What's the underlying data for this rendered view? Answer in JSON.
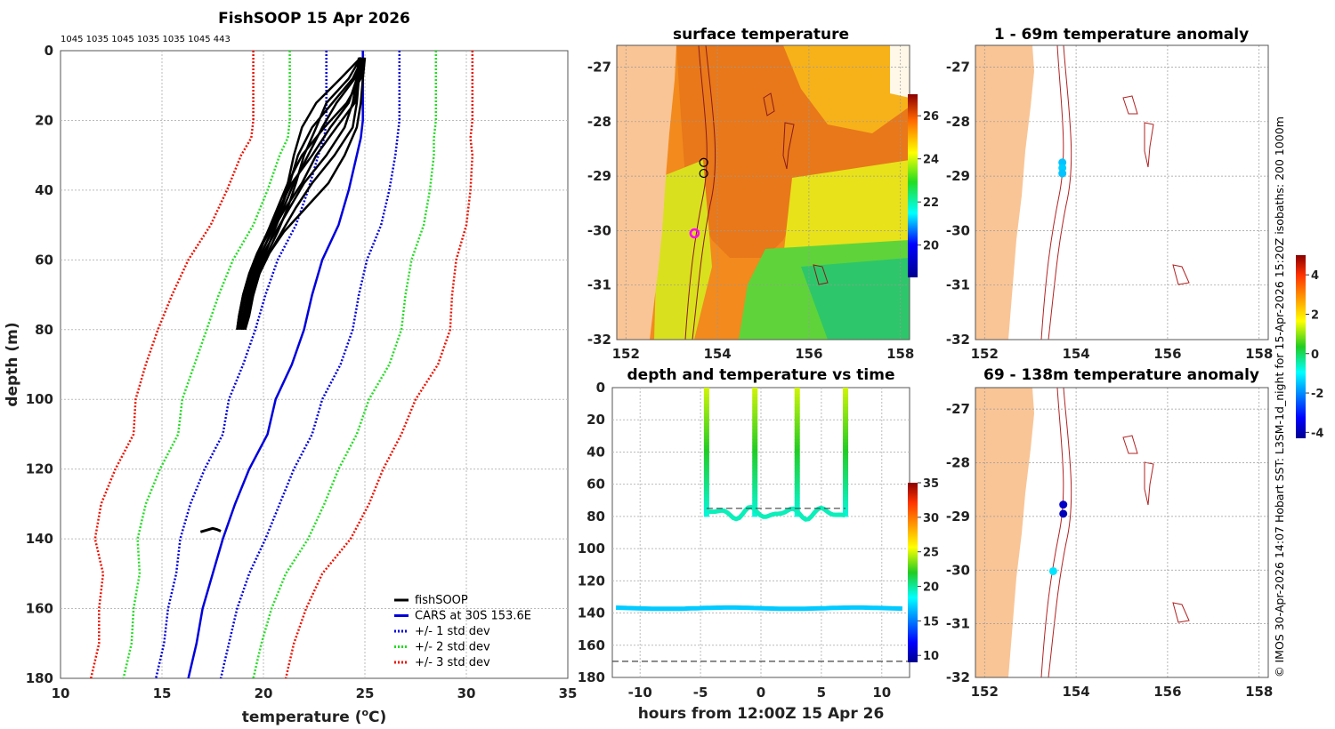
{
  "chart_data": [
    {
      "type": "line",
      "panel": "profile",
      "title": "FishSOOP 15 Apr 2026",
      "subtitle": "1045 1035 1045 1035 1035 1045 443",
      "xlabel": "temperature (",
      "xlabel_sup": "o",
      "xlabel_end": "C)",
      "ylabel": "depth (m)",
      "xlim": [
        10,
        35
      ],
      "ylim": [
        0,
        180
      ],
      "y_reversed": true,
      "xticks": [
        10,
        15,
        20,
        25,
        30,
        35
      ],
      "yticks": [
        0,
        20,
        40,
        60,
        80,
        100,
        120,
        140,
        160,
        180
      ],
      "grid": true,
      "legend": {
        "position": "bottom-right",
        "entries": [
          {
            "label": "fishSOOP",
            "color": "#000000",
            "style": "solid"
          },
          {
            "label": "CARS at 30S 153.6E",
            "color": "#0000dd",
            "style": "solid"
          },
          {
            "label": "+/- 1 std dev",
            "color": "#0000dd",
            "style": "dotted"
          },
          {
            "label": "+/- 2 std dev",
            "color": "#22dd22",
            "style": "dotted"
          },
          {
            "label": "+/- 3 std dev",
            "color": "#ee1100",
            "style": "dotted"
          }
        ]
      },
      "cars_depth": [
        0,
        20,
        25,
        30,
        40,
        50,
        60,
        70,
        80,
        90,
        100,
        110,
        120,
        130,
        140,
        150,
        160,
        170,
        180
      ],
      "cars_mean": [
        24.9,
        24.9,
        24.8,
        24.6,
        24.2,
        23.7,
        22.9,
        22.4,
        22.0,
        21.4,
        20.6,
        20.2,
        19.3,
        18.6,
        18.0,
        17.5,
        17.0,
        16.7,
        16.3
      ],
      "cars_std": [
        1.8,
        1.8,
        1.8,
        1.9,
        2.0,
        2.1,
        2.2,
        2.3,
        2.4,
        2.4,
        2.3,
        2.2,
        2.2,
        2.2,
        2.1,
        1.8,
        1.7,
        1.6,
        1.6
      ],
      "fish_profiles": [
        {
          "depth": [
            2,
            8,
            15,
            22,
            30,
            38,
            45,
            52,
            58,
            64,
            70,
            76,
            80
          ],
          "temp": [
            24.8,
            24.7,
            24.5,
            23.6,
            22.6,
            21.9,
            21.1,
            20.4,
            19.9,
            19.5,
            19.2,
            19.0,
            18.9
          ]
        },
        {
          "depth": [
            2,
            8,
            15,
            22,
            30,
            38,
            45,
            52,
            58,
            64,
            70,
            76,
            80
          ],
          "temp": [
            24.9,
            24.8,
            24.1,
            23.0,
            21.9,
            21.2,
            20.7,
            20.2,
            19.8,
            19.4,
            19.1,
            18.9,
            18.8
          ]
        },
        {
          "depth": [
            2,
            8,
            15,
            22,
            30,
            38,
            45,
            52,
            58,
            64,
            70,
            76,
            80
          ],
          "temp": [
            24.8,
            23.8,
            22.6,
            21.9,
            21.5,
            21.2,
            20.9,
            20.3,
            19.7,
            19.3,
            19.0,
            18.8,
            18.7
          ]
        },
        {
          "depth": [
            2,
            8,
            15,
            22,
            30,
            38,
            45,
            52,
            58,
            64,
            70,
            76,
            80
          ],
          "temp": [
            24.9,
            24.4,
            23.4,
            22.4,
            21.7,
            21.3,
            20.9,
            20.4,
            19.9,
            19.6,
            19.3,
            19.1,
            19.0
          ]
        },
        {
          "depth": [
            2,
            8,
            15,
            22,
            30,
            38,
            45,
            52,
            58,
            64,
            70,
            76,
            80
          ],
          "temp": [
            24.7,
            24.6,
            24.4,
            24.0,
            23.1,
            22.0,
            21.3,
            20.6,
            20.0,
            19.6,
            19.3,
            19.0,
            18.9
          ]
        },
        {
          "depth": [
            2,
            8,
            15,
            22,
            30,
            38,
            45,
            52,
            58,
            64,
            70,
            76,
            80
          ],
          "temp": [
            24.9,
            24.5,
            23.6,
            22.9,
            22.2,
            21.5,
            21.0,
            20.5,
            20.1,
            19.7,
            19.4,
            19.2,
            19.0
          ]
        },
        {
          "depth": [
            2,
            8,
            15,
            22,
            30,
            38,
            45,
            52,
            58,
            64,
            70,
            76,
            80
          ],
          "temp": [
            24.8,
            24.6,
            24.2,
            23.3,
            22.4,
            21.4,
            20.8,
            20.2,
            19.7,
            19.3,
            19.0,
            18.8,
            18.7
          ]
        },
        {
          "depth": [
            2,
            8,
            15,
            22,
            30,
            38,
            45,
            52,
            58,
            64,
            70,
            76,
            80
          ],
          "temp": [
            24.9,
            24.7,
            24.6,
            24.4,
            23.5,
            22.4,
            21.6,
            20.9,
            20.3,
            19.8,
            19.5,
            19.2,
            19.1
          ]
        },
        {
          "depth": [
            2,
            8,
            15,
            22,
            30,
            38,
            45,
            52,
            58,
            64,
            70,
            76,
            80
          ],
          "temp": [
            25.0,
            24.9,
            24.8,
            24.6,
            24.0,
            23.2,
            22.1,
            21.0,
            20.3,
            19.8,
            19.4,
            19.1,
            19.0
          ]
        },
        {
          "depth": [
            2,
            8,
            15,
            22,
            30,
            38,
            45,
            52,
            58,
            64,
            70,
            76,
            80
          ],
          "temp": [
            24.8,
            24.2,
            23.1,
            22.6,
            22.0,
            21.6,
            21.2,
            20.7,
            20.2,
            19.8,
            19.5,
            19.3,
            19.1
          ]
        }
      ],
      "fish_deep_segment": {
        "depth": [
          138,
          137.5,
          137,
          137.3,
          137.8
        ],
        "temp": [
          16.9,
          17.2,
          17.5,
          17.7,
          17.9
        ]
      }
    },
    {
      "type": "heatmap",
      "panel": "sst_map",
      "title": "surface temperature",
      "xlim": [
        151.8,
        158.2
      ],
      "ylim": [
        -32,
        -26.6
      ],
      "xticks": [
        152,
        154,
        156,
        158
      ],
      "yticks": [
        -27,
        -28,
        -29,
        -30,
        -31,
        -32
      ],
      "colorbar": {
        "min": 18.5,
        "max": 27,
        "ticks": [
          20,
          22,
          24,
          26
        ]
      },
      "markers": [
        {
          "lon": 153.7,
          "lat": -28.75,
          "style": "black-circle"
        },
        {
          "lon": 153.7,
          "lat": -28.95,
          "style": "black-circle"
        },
        {
          "lon": 153.5,
          "lat": -30.05,
          "style": "magenta-circle"
        }
      ]
    },
    {
      "type": "scatter",
      "panel": "anom_upper",
      "title": "1 - 69m temperature anomaly",
      "xlim": [
        151.8,
        158.2
      ],
      "ylim": [
        -32,
        -26.6
      ],
      "xticks": [
        152,
        154,
        156,
        158
      ],
      "yticks": [
        -27,
        -28,
        -29,
        -30,
        -31,
        -32
      ],
      "points": [
        {
          "lon": 153.7,
          "lat": -28.75,
          "anomaly": -1.5
        },
        {
          "lon": 153.7,
          "lat": -28.85,
          "anomaly": -1.4
        },
        {
          "lon": 153.7,
          "lat": -28.95,
          "anomaly": -1.5
        }
      ]
    },
    {
      "type": "scatter",
      "panel": "anom_lower",
      "title": "69 - 138m temperature anomaly",
      "xlim": [
        151.8,
        158.2
      ],
      "ylim": [
        -32,
        -26.6
      ],
      "xticks": [
        152,
        154,
        156,
        158
      ],
      "yticks": [
        -27,
        -28,
        -29,
        -30,
        -31,
        -32
      ],
      "colorbar": {
        "min": -4.3,
        "max": 5,
        "ticks": [
          -4,
          -2,
          0,
          2,
          4
        ]
      },
      "points": [
        {
          "lon": 153.72,
          "lat": -28.78,
          "anomaly": -3.8
        },
        {
          "lon": 153.72,
          "lat": -28.95,
          "anomaly": -3.9
        },
        {
          "lon": 153.5,
          "lat": -30.02,
          "anomaly": -1.2
        }
      ]
    },
    {
      "type": "scatter",
      "panel": "time_depth",
      "title": "depth and temperature vs time",
      "xlabel": "hours from 12:00Z 15 Apr 26",
      "xlim": [
        -12.3,
        12.3
      ],
      "ylim": [
        0,
        180
      ],
      "y_reversed": true,
      "xticks": [
        -10,
        -5,
        0,
        5,
        10
      ],
      "yticks": [
        0,
        20,
        40,
        60,
        80,
        100,
        120,
        140,
        160,
        180
      ],
      "colorbar": {
        "min": 9,
        "max": 35,
        "ticks": [
          10,
          15,
          20,
          25,
          30,
          35
        ]
      },
      "casts_hours": [
        -4.5,
        -0.5,
        3.0,
        7.0
      ],
      "bottom_segment": {
        "x_range": [
          -4.3,
          7.0
        ],
        "depth": 78
      },
      "deep_track": {
        "x_range": [
          -12,
          12
        ],
        "depth": 137,
        "temperature": 17
      },
      "dashed_lines": [
        {
          "depth": 75,
          "x_range": [
            -4.5,
            7
          ]
        },
        {
          "depth": 170,
          "x_range": [
            -12.3,
            12.3
          ]
        }
      ]
    }
  ],
  "side_text": "© IMOS 30-Apr-2026 14:07 Hobart SST: L3SM-1d_night for 15-Apr-2026 15:20Z isobaths: 200  1000m",
  "colors": {
    "cars": "#0000dd",
    "std1": "#0000dd",
    "std2": "#22dd22",
    "std3": "#ee1100",
    "fish": "#000000",
    "land": "#f9c596",
    "isobath": "#b22222"
  }
}
